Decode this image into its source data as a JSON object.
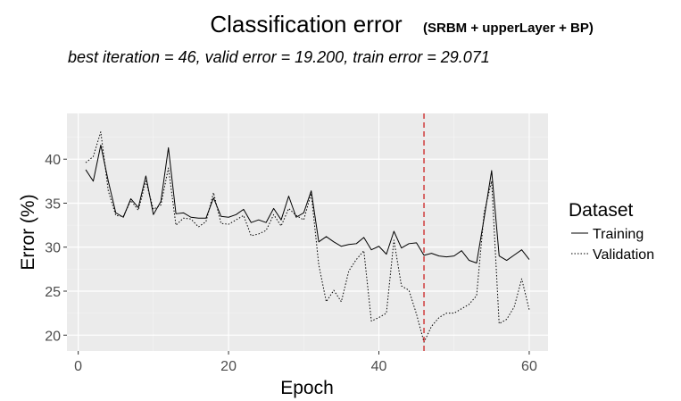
{
  "chart_data": {
    "type": "line",
    "title": "Classification error",
    "title_suffix": "(SRBM + upperLayer + BP)",
    "subtitle": "best iteration = 46, valid error = 19.200, train error = 29.071",
    "xlabel": "Epoch",
    "ylabel": "Error (%)",
    "xlim": [
      -1.5,
      62.5
    ],
    "ylim": [
      18.2,
      45.2
    ],
    "xticks": [
      0,
      20,
      40,
      60
    ],
    "yticks": [
      20,
      25,
      30,
      35,
      40
    ],
    "grid": true,
    "panel_background": "#ebebeb",
    "legend": {
      "title": "Dataset",
      "position": "right"
    },
    "best_iteration_line": {
      "x": 46,
      "color": "#cc2222",
      "style": "dashed"
    },
    "x": [
      1,
      2,
      3,
      4,
      5,
      6,
      7,
      8,
      9,
      10,
      11,
      12,
      13,
      14,
      15,
      16,
      17,
      18,
      19,
      20,
      21,
      22,
      23,
      24,
      25,
      26,
      27,
      28,
      29,
      30,
      31,
      32,
      33,
      34,
      35,
      36,
      37,
      38,
      39,
      40,
      41,
      42,
      43,
      44,
      45,
      46,
      47,
      48,
      49,
      50,
      51,
      52,
      53,
      54,
      55,
      56,
      57,
      58,
      59,
      60
    ],
    "series": [
      {
        "name": "Training",
        "style": "solid",
        "values": [
          38.8,
          37.5,
          41.6,
          37.5,
          33.9,
          33.4,
          35.5,
          34.5,
          38.1,
          33.7,
          35.2,
          41.3,
          33.8,
          33.9,
          33.4,
          33.3,
          33.3,
          35.6,
          33.5,
          33.4,
          33.7,
          34.3,
          32.8,
          33.1,
          32.8,
          34.4,
          33.1,
          35.8,
          33.4,
          33.9,
          36.4,
          30.6,
          31.2,
          30.6,
          30.1,
          30.3,
          30.4,
          31.1,
          29.7,
          30.1,
          29.2,
          31.8,
          29.9,
          30.4,
          30.5,
          29.07,
          29.3,
          29.0,
          28.9,
          29.0,
          29.6,
          28.5,
          28.2,
          33.3,
          38.7,
          29.0,
          28.5,
          29.1,
          29.7,
          28.6
        ]
      },
      {
        "name": "Validation",
        "style": "dotted",
        "values": [
          39.6,
          40.3,
          43.1,
          36.4,
          33.6,
          33.5,
          35.3,
          34.2,
          37.5,
          34.3,
          34.8,
          39.0,
          32.5,
          33.3,
          33.2,
          32.3,
          32.9,
          36.2,
          32.7,
          32.6,
          33.1,
          33.6,
          31.3,
          31.5,
          31.9,
          33.7,
          32.4,
          34.4,
          33.6,
          33.1,
          36.1,
          28.0,
          23.8,
          25.1,
          23.8,
          27.3,
          28.6,
          29.6,
          21.6,
          22.0,
          22.5,
          30.8,
          25.6,
          25.1,
          22.4,
          19.2,
          21.0,
          22.0,
          22.5,
          22.5,
          23.0,
          23.5,
          24.5,
          33.9,
          37.5,
          21.3,
          21.8,
          23.2,
          26.4,
          22.9
        ]
      }
    ]
  }
}
